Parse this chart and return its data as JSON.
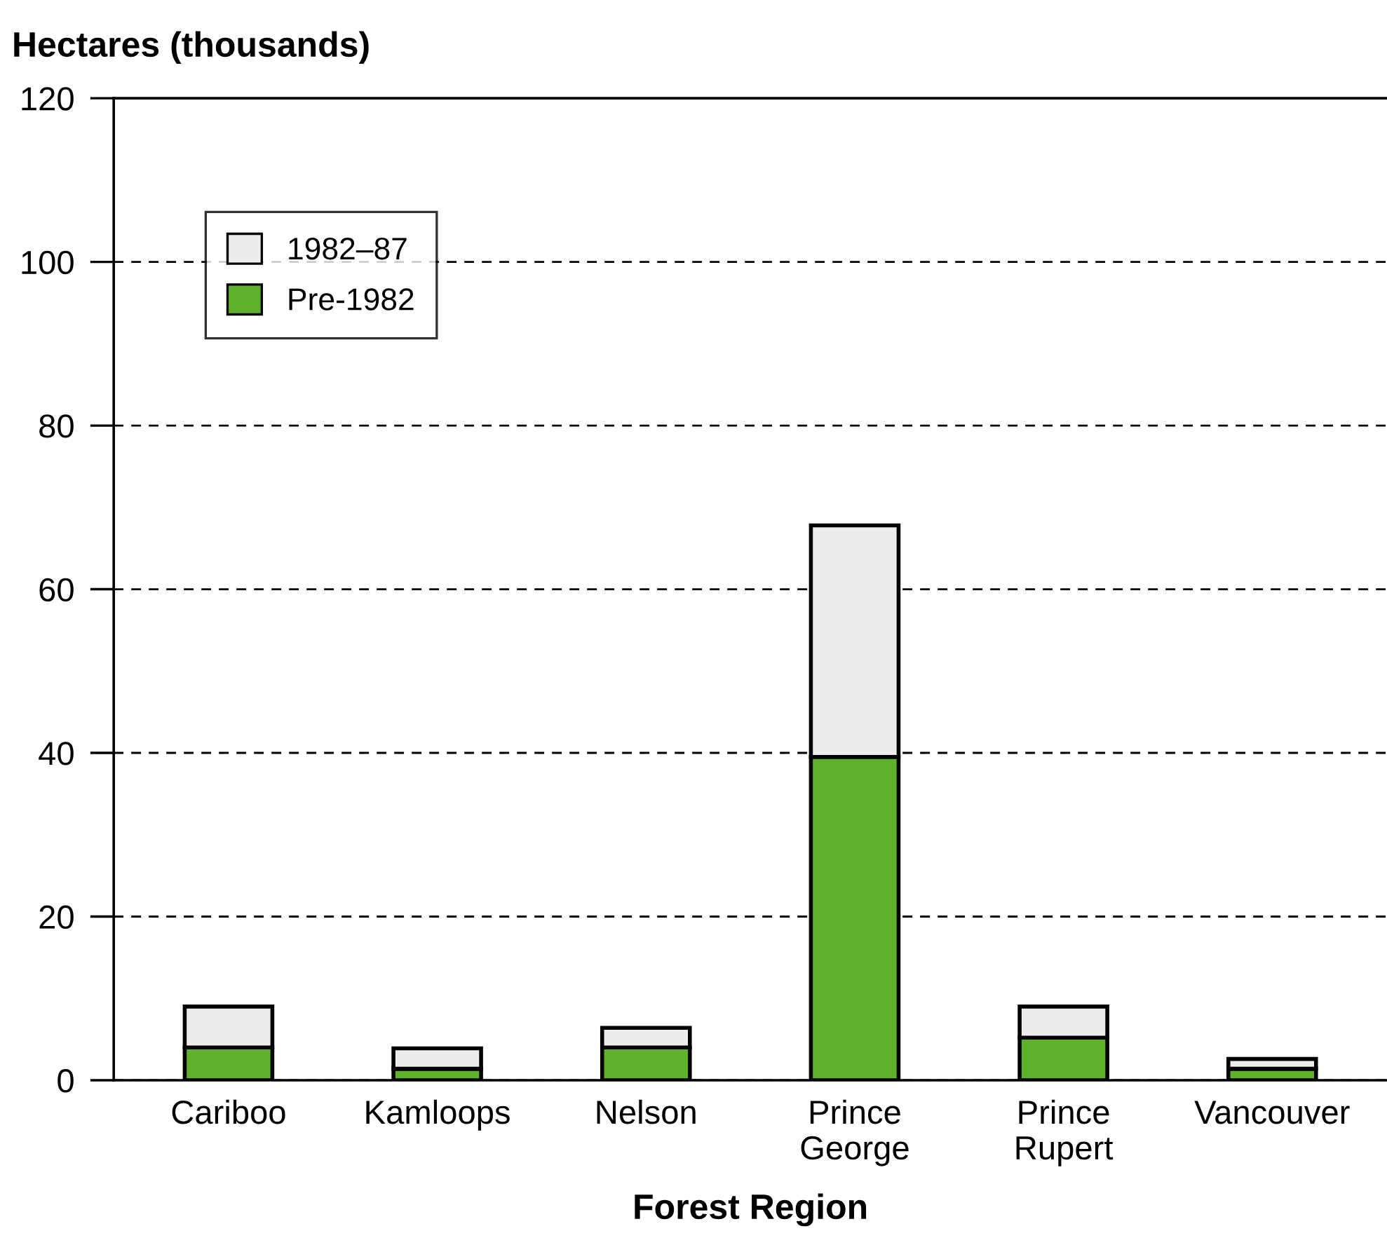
{
  "chart_data": {
    "type": "bar",
    "stacked": true,
    "xlabel": "Forest Region",
    "ylabel": "Hectares (thousands)",
    "categories": [
      "Cariboo",
      "Kamloops",
      "Nelson",
      "Prince\nGeorge",
      "Prince\nRupert",
      "Vancouver"
    ],
    "series": [
      {
        "name": "Pre-1982",
        "color": "#5fb22a",
        "values": [
          4,
          1.4,
          4,
          39.5,
          5.2,
          1.4
        ]
      },
      {
        "name": "1982–87",
        "color": "#ececec",
        "values": [
          5,
          2.5,
          2.4,
          28.3,
          3.8,
          1.2
        ]
      }
    ],
    "ylim": [
      0,
      120
    ],
    "yticks": [
      0,
      20,
      40,
      60,
      80,
      100,
      120
    ],
    "grid": "y",
    "legend": "top left"
  }
}
